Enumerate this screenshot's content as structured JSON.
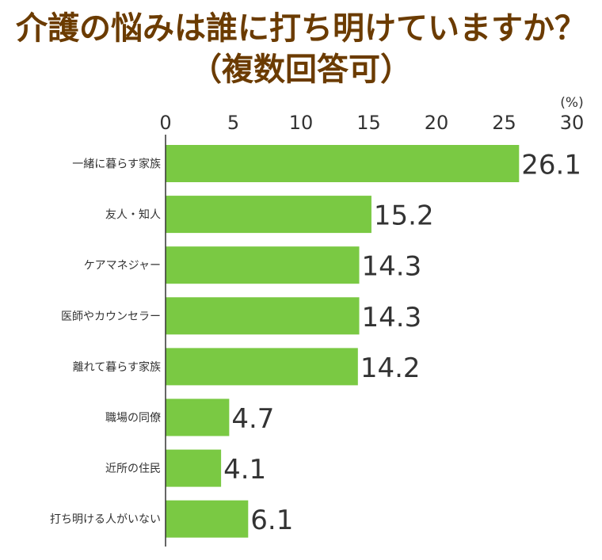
{
  "title_line1": "介護の悩みは誰に打ち明けていますか？",
  "title_line2": "（複数回答可）",
  "chart_data": {
    "type": "bar",
    "orientation": "horizontal",
    "categories": [
      "一緒に暮らす家族",
      "友人・知人",
      "ケアマネジャー",
      "医師やカウンセラー",
      "離れて暮らす家族",
      "職場の同僚",
      "近所の住民",
      "打ち明ける人がいない"
    ],
    "values": [
      26.1,
      15.2,
      14.3,
      14.3,
      14.2,
      4.7,
      4.1,
      6.1
    ],
    "value_labels": [
      "26.1",
      "15.2",
      "14.3",
      "14.3",
      "14.2",
      "4.7",
      "4.1",
      "6.1"
    ],
    "xlim": [
      0,
      30
    ],
    "x_ticks": [
      "0",
      "5",
      "10",
      "15",
      "20",
      "25",
      "30"
    ],
    "unit": "(%)",
    "bar_color": "#7ac943",
    "grid": false,
    "legend": "none"
  }
}
